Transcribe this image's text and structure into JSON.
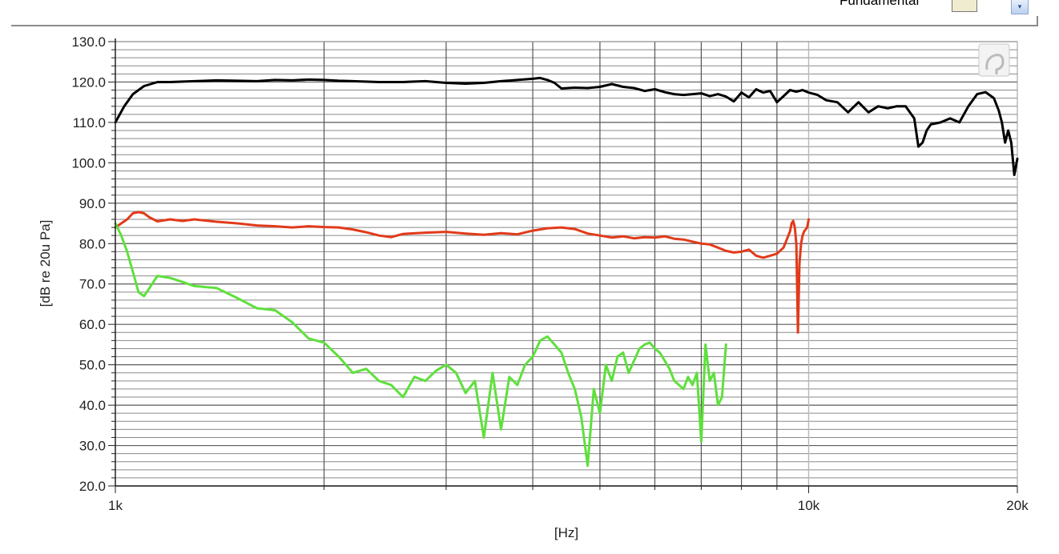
{
  "legend": {
    "label": "Fundamental"
  },
  "chart_data": {
    "type": "line",
    "title": "",
    "xlabel": "[Hz]",
    "ylabel": "[dB re 20u Pa]",
    "xscale": "log",
    "xlim": [
      1000,
      20000
    ],
    "ylim": [
      20,
      130
    ],
    "grid": true,
    "xticks": [
      {
        "value": 1000,
        "label": "1k"
      },
      {
        "value": 10000,
        "label": "10k"
      },
      {
        "value": 20000,
        "label": "20k"
      }
    ],
    "yticks": [
      {
        "value": 20,
        "label": "20.0"
      },
      {
        "value": 30,
        "label": "30.0"
      },
      {
        "value": 40,
        "label": "40.0"
      },
      {
        "value": 50,
        "label": "50.0"
      },
      {
        "value": 60,
        "label": "60.0"
      },
      {
        "value": 70,
        "label": "70.0"
      },
      {
        "value": 80,
        "label": "80.0"
      },
      {
        "value": 90,
        "label": "90.0"
      },
      {
        "value": 100,
        "label": "100.0"
      },
      {
        "value": 110,
        "label": "110.0"
      },
      {
        "value": 120,
        "label": "120.0"
      },
      {
        "value": 130,
        "label": "130.0"
      }
    ],
    "series": [
      {
        "color": "#000000",
        "x": [
          1000,
          1030,
          1060,
          1100,
          1150,
          1200,
          1300,
          1400,
          1500,
          1600,
          1700,
          1800,
          1900,
          2000,
          2100,
          2200,
          2400,
          2600,
          2800,
          3000,
          3200,
          3400,
          3600,
          3800,
          4000,
          4100,
          4200,
          4300,
          4400,
          4600,
          4800,
          5000,
          5200,
          5400,
          5600,
          5800,
          6000,
          6200,
          6400,
          6600,
          6800,
          7000,
          7200,
          7400,
          7600,
          7800,
          8000,
          8200,
          8400,
          8600,
          8800,
          9000,
          9200,
          9400,
          9600,
          9800,
          10000,
          10300,
          10600,
          11000,
          11400,
          11800,
          12200,
          12600,
          13000,
          13400,
          13800,
          14200,
          14400,
          14600,
          14800,
          15000,
          15500,
          16000,
          16500,
          17000,
          17500,
          18000,
          18500,
          18800,
          19000,
          19200,
          19400,
          19600,
          19800,
          20000
        ],
        "y": [
          110,
          114,
          117,
          119,
          120,
          120,
          120.2,
          120.4,
          120.3,
          120.2,
          120.5,
          120.4,
          120.6,
          120.5,
          120.3,
          120.2,
          120,
          120,
          120.2,
          119.8,
          119.6,
          119.8,
          120.2,
          120.5,
          120.8,
          121,
          120.5,
          119.8,
          118.4,
          118.6,
          118.5,
          118.8,
          119.5,
          118.8,
          118.5,
          117.8,
          118.2,
          117.5,
          117,
          116.8,
          117,
          117.2,
          116.5,
          117,
          116.4,
          115.2,
          117.4,
          116.2,
          118.2,
          117.4,
          117.8,
          115,
          116.5,
          118,
          117.6,
          118,
          117.4,
          116.8,
          115.5,
          115,
          112.5,
          115,
          112.5,
          114,
          113.5,
          114,
          114,
          111,
          104,
          105,
          108,
          109.5,
          110,
          111,
          110,
          114,
          117,
          117.5,
          116,
          113,
          110,
          105,
          108,
          105,
          97,
          101
        ]
      },
      {
        "color": "#e23a1a",
        "x": [
          1000,
          1020,
          1040,
          1060,
          1080,
          1100,
          1120,
          1150,
          1200,
          1250,
          1300,
          1400,
          1500,
          1600,
          1700,
          1800,
          1900,
          2000,
          2100,
          2200,
          2300,
          2400,
          2500,
          2600,
          2800,
          3000,
          3200,
          3400,
          3600,
          3800,
          4000,
          4200,
          4400,
          4600,
          4800,
          5000,
          5200,
          5400,
          5600,
          5800,
          6000,
          6200,
          6400,
          6600,
          6800,
          7000,
          7200,
          7400,
          7600,
          7800,
          8000,
          8200,
          8400,
          8600,
          8800,
          9000,
          9200,
          9300,
          9400,
          9450,
          9500,
          9550,
          9600,
          9650,
          9700,
          9750,
          9800,
          9850,
          9900,
          9950,
          10000
        ],
        "y": [
          84,
          85,
          86,
          87.5,
          87.8,
          87.5,
          86.5,
          85.5,
          86,
          85.6,
          86,
          85.4,
          85,
          84.5,
          84.3,
          84,
          84.3,
          84.1,
          84,
          83.5,
          82.8,
          82,
          81.6,
          82.4,
          82.7,
          82.9,
          82.5,
          82.2,
          82.6,
          82.3,
          83.2,
          83.8,
          84,
          83.6,
          82.5,
          82,
          81.5,
          81.8,
          81.3,
          81.6,
          81.5,
          81.8,
          81.2,
          81,
          80.5,
          80,
          79.8,
          79,
          78.2,
          77.8,
          78,
          78.5,
          77,
          76.5,
          77,
          77.5,
          79,
          81,
          83,
          85,
          85.6,
          84,
          80,
          58,
          75,
          80,
          82,
          83,
          83.5,
          84,
          86
        ]
      },
      {
        "color": "#5ee03c",
        "x": [
          1000,
          1020,
          1040,
          1060,
          1080,
          1100,
          1120,
          1150,
          1200,
          1250,
          1300,
          1400,
          1500,
          1600,
          1700,
          1800,
          1900,
          2000,
          2100,
          2200,
          2300,
          2400,
          2500,
          2600,
          2700,
          2800,
          2900,
          3000,
          3100,
          3200,
          3300,
          3400,
          3500,
          3600,
          3700,
          3800,
          3900,
          4000,
          4100,
          4200,
          4300,
          4400,
          4500,
          4600,
          4700,
          4800,
          4900,
          5000,
          5100,
          5200,
          5300,
          5400,
          5500,
          5600,
          5700,
          5800,
          5900,
          6000,
          6100,
          6200,
          6300,
          6400,
          6500,
          6600,
          6700,
          6800,
          6900,
          7000,
          7100,
          7200,
          7300,
          7400,
          7500,
          7600
        ],
        "y": [
          85,
          82,
          78,
          73,
          68,
          67,
          69,
          72,
          71.5,
          70.5,
          69.5,
          69,
          66.5,
          64,
          63.5,
          60.5,
          56.5,
          55.5,
          52,
          48,
          49,
          46,
          45,
          42,
          47,
          46,
          48.5,
          50,
          48,
          43,
          46,
          32,
          48,
          34,
          47,
          45,
          50,
          52,
          56,
          57,
          55,
          53,
          48,
          44,
          37,
          25,
          44,
          38,
          50,
          46,
          52,
          53,
          48,
          51,
          54,
          55,
          55.5,
          54,
          53,
          51,
          49,
          46,
          45,
          44,
          47,
          45,
          48,
          31,
          55,
          46,
          48,
          40,
          42,
          55
        ]
      }
    ]
  }
}
